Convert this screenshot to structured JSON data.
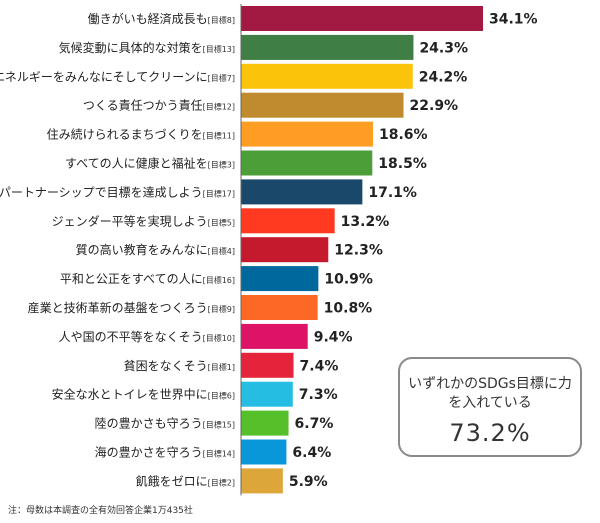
{
  "chart_data": {
    "type": "bar",
    "orientation": "horizontal",
    "categories": [
      {
        "label": "働きがいも経済成長も",
        "tag": "[目標8]"
      },
      {
        "label": "気候変動に具体的な対策を",
        "tag": "[目標13]"
      },
      {
        "label": "エネルギーをみんなにそしてクリーンに",
        "tag": "[目標7]"
      },
      {
        "label": "つくる責任つかう責任",
        "tag": "[目標12]"
      },
      {
        "label": "住み続けられるまちづくりを",
        "tag": "[目標11]"
      },
      {
        "label": "すべての人に健康と福祉を",
        "tag": "[目標3]"
      },
      {
        "label": "パートナーシップで目標を達成しよう",
        "tag": "[目標17]"
      },
      {
        "label": "ジェンダー平等を実現しよう",
        "tag": "[目標5]"
      },
      {
        "label": "質の高い教育をみんなに",
        "tag": "[目標4]"
      },
      {
        "label": "平和と公正をすべての人に",
        "tag": "[目標16]"
      },
      {
        "label": "産業と技術革新の基盤をつくろう",
        "tag": "[目標9]"
      },
      {
        "label": "人や国の不平等をなくそう",
        "tag": "[目標10]"
      },
      {
        "label": "貧困をなくそう",
        "tag": "[目標1]"
      },
      {
        "label": "安全な水とトイレを世界中に",
        "tag": "[目標6]"
      },
      {
        "label": "陸の豊かさも守ろう",
        "tag": "[目標15]"
      },
      {
        "label": "海の豊かさを守ろう",
        "tag": "[目標14]"
      },
      {
        "label": "飢餓をゼロに",
        "tag": "[目標2]"
      }
    ],
    "values": [
      34.1,
      24.3,
      24.2,
      22.9,
      18.6,
      18.5,
      17.1,
      13.2,
      12.3,
      10.9,
      10.8,
      9.4,
      7.4,
      7.3,
      6.7,
      6.4,
      5.9
    ],
    "value_labels": [
      "34.1%",
      "24.3%",
      "24.2%",
      "22.9%",
      "18.6%",
      "18.5%",
      "17.1%",
      "13.2%",
      "12.3%",
      "10.9%",
      "10.8%",
      "9.4%",
      "7.4%",
      "7.3%",
      "6.7%",
      "6.4%",
      "5.9%"
    ],
    "colors": [
      "#A21942",
      "#3F7E44",
      "#FCC30B",
      "#BF8B2E",
      "#FD9D24",
      "#4C9F38",
      "#19486A",
      "#FF3A21",
      "#C5192D",
      "#00689D",
      "#FD6925",
      "#DD1367",
      "#E5243B",
      "#26BDE2",
      "#56C02B",
      "#0A97D9",
      "#DDA63A"
    ],
    "xlim": [
      0,
      34.1
    ],
    "grid": false,
    "legend": "none"
  },
  "summary": {
    "label": "いずれかのSDGs目標に力を入れている",
    "value": "73.2%"
  },
  "note": "注：母数は本調査の全有効回答企業1万435社"
}
